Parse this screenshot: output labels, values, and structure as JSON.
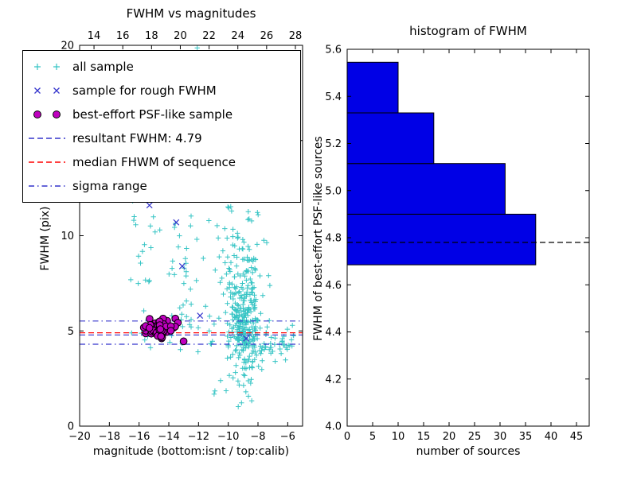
{
  "window": {
    "background": "#ffffff"
  },
  "chart_data": [
    {
      "type": "scatter",
      "title": "FWHM vs magnitudes",
      "xlabel": "magnitude (bottom:isnt / top:calib)",
      "ylabel": "FWHM (pix)",
      "xlim": [
        -20,
        -5
      ],
      "ylim": [
        0,
        20
      ],
      "top_xlim": [
        13,
        28.5
      ],
      "xticks": [
        -20,
        -18,
        -16,
        -14,
        -12,
        -10,
        -8,
        -6
      ],
      "top_xticks": [
        14,
        16,
        18,
        20,
        22,
        24,
        26,
        28
      ],
      "yticks": [
        0,
        5,
        10,
        15,
        20
      ],
      "grid": false,
      "legend_position": "upper-left",
      "legend": [
        {
          "label": "all sample",
          "type": "marker",
          "marker": "plus",
          "color": "#35c4c4"
        },
        {
          "label": "sample for rough FWHM",
          "type": "marker",
          "marker": "cross",
          "color": "#3333cc"
        },
        {
          "label": "best-effort PSF-like sample",
          "type": "marker",
          "marker": "circle",
          "color": "#bf00bf"
        },
        {
          "label": "resultant FWHM: 4.79",
          "type": "line",
          "dash": "dashed",
          "color": "#3333cc"
        },
        {
          "label": "median FHWM of sequence",
          "type": "line",
          "dash": "dashed",
          "color": "#ff0000"
        },
        {
          "label": "sigma range",
          "type": "line",
          "dash": "dashdot",
          "color": "#3333cc"
        }
      ],
      "hlines": [
        {
          "name": "resultant-fwhm-line",
          "y": 4.79,
          "dash": "dashed",
          "color": "#3333cc"
        },
        {
          "name": "median-fwhm-line",
          "y": 4.9,
          "dash": "dashed",
          "color": "#ff0000"
        },
        {
          "name": "sigma-upper-line",
          "y": 5.52,
          "dash": "dashdot",
          "color": "#3333cc"
        },
        {
          "name": "sigma-lower-line",
          "y": 4.3,
          "dash": "dashdot",
          "color": "#3333cc"
        }
      ],
      "series": [
        {
          "name": "all sample",
          "marker": "plus",
          "color": "#35c4c4",
          "generate": {
            "seed": 7,
            "clusters": [
              {
                "count": 250,
                "cx": -8.9,
                "sx": 0.55,
                "cy": 5.3,
                "sy": 1.4,
                "clamp": [
                  -10.6,
                  -7.2,
                  1.8,
                  20
                ]
              },
              {
                "count": 90,
                "cx": -9.1,
                "sx": 0.75,
                "cy": 8.8,
                "sy": 2.0,
                "clamp": [
                  -11,
                  -7.2,
                  3,
                  20
                ]
              },
              {
                "count": 22,
                "cx": -9.2,
                "sx": 0.9,
                "cy": 15.5,
                "sy": 2.4,
                "clamp": [
                  -11.5,
                  -7.5,
                  10,
                  20
                ]
              },
              {
                "count": 45,
                "x0": -8.3,
                "x1": -5.6,
                "cy": 4.4,
                "sy": 0.5
              },
              {
                "count": 38,
                "x0": -16.6,
                "x1": -11.2,
                "y0": 7.3,
                "y1": 12.6
              },
              {
                "count": 6,
                "x0": -12.2,
                "x1": -8.8,
                "y0": 18.3,
                "y1": 19.9
              },
              {
                "count": 28,
                "cx": -14.4,
                "sx": 1.1,
                "cy": 5.1,
                "sy": 0.5,
                "clamp": [
                  -16.5,
                  -12.5,
                  3.8,
                  6.6
                ]
              },
              {
                "count": 22,
                "x0": -13.2,
                "x1": -10.6,
                "y0": 3.6,
                "y1": 9.0
              },
              {
                "count": 10,
                "x0": -11.2,
                "x1": -8.4,
                "y0": 1.0,
                "y1": 3.0
              }
            ]
          }
        },
        {
          "name": "sample for rough FWHM",
          "marker": "cross",
          "color": "#3333cc",
          "points": [
            [
              -15.3,
              11.6
            ],
            [
              -13.5,
              10.7
            ],
            [
              -13.1,
              8.4
            ],
            [
              -11.9,
              5.8
            ],
            [
              -8.8,
              4.6
            ],
            [
              -14.6,
              5.1
            ],
            [
              -13.9,
              4.9
            ],
            [
              -15.0,
              4.8
            ]
          ]
        },
        {
          "name": "best-effort PSF-like sample",
          "marker": "circle",
          "color": "#bf00bf",
          "edge": "#000000",
          "generate": {
            "seed": 99,
            "clusters": [
              {
                "count": 55,
                "cx": -14.5,
                "sx": 0.62,
                "cy": 5.05,
                "sy": 0.27,
                "clamp": [
                  -15.9,
                  -13.0,
                  4.35,
                  5.65
                ]
              }
            ]
          }
        }
      ]
    },
    {
      "type": "bar",
      "orientation": "horizontal",
      "title": "histogram of FWHM",
      "xlabel": "number of sources",
      "ylabel": "FWHM of best-effort PSF-like sources",
      "xlim": [
        0,
        47.5
      ],
      "ylim": [
        4.0,
        5.6
      ],
      "xticks": [
        0,
        5,
        10,
        15,
        20,
        25,
        30,
        35,
        40,
        45
      ],
      "yticks": [
        4.0,
        4.2,
        4.4,
        4.6,
        4.8,
        5.0,
        5.2,
        5.4,
        5.6
      ],
      "bar_color": "#0000e6",
      "bar_edge": "#000000",
      "bins": [
        {
          "from": 4.685,
          "to": 4.9,
          "count": 37
        },
        {
          "from": 4.9,
          "to": 5.115,
          "count": 31
        },
        {
          "from": 5.115,
          "to": 5.33,
          "count": 17
        },
        {
          "from": 5.33,
          "to": 5.545,
          "count": 10
        }
      ],
      "marker_line": {
        "y": 4.78,
        "dash": "dashed",
        "color": "#000000"
      }
    }
  ]
}
